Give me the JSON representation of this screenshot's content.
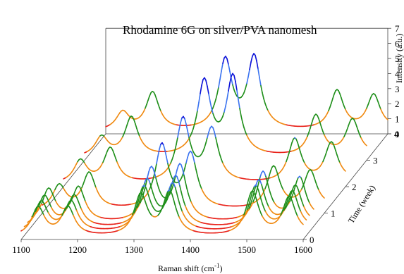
{
  "chart_data": {
    "type": "line",
    "title": "Rhodamine 6G on silver/PVA nanomesh",
    "xlabel_main": "Raman shift (cm",
    "xlabel_sup": "-1",
    "xlabel_tail": ")",
    "ylabel": "Time (week)",
    "zlabel": "Intensity (a.u.)",
    "x_ticks": [
      "1100",
      "1200",
      "1300",
      "1400",
      "1500",
      "1600"
    ],
    "y_ticks": [
      "0",
      "1",
      "2",
      "3",
      "4"
    ],
    "z_ticks": [
      "0",
      "1",
      "2",
      "3",
      "4",
      "5",
      "6",
      "7"
    ],
    "xlim": [
      1100,
      1600
    ],
    "ylim": [
      0,
      4
    ],
    "zlim": [
      0,
      7
    ],
    "colormap": [
      "#e8221a",
      "#f08a12",
      "#1f8f1a",
      "#3a73f0",
      "#0b12d8"
    ],
    "peaks_cm1": [
      1130,
      1183,
      1312,
      1363,
      1510,
      1575,
      1650
    ],
    "series": [
      {
        "week": 0,
        "peak_heights": [
          1.9,
          1.9,
          2.7,
          2.9,
          2.9,
          2.5,
          2.3
        ]
      },
      {
        "week": 0.15,
        "peak_heights": [
          2.0,
          2.0,
          2.9,
          3.1,
          3.0,
          2.6,
          2.4
        ]
      },
      {
        "week": 0.3,
        "peak_heights": [
          2.1,
          2.1,
          3.1,
          3.3,
          3.1,
          2.7,
          2.5
        ]
      },
      {
        "week": 0.5,
        "peak_heights": [
          2.2,
          2.3,
          3.5,
          3.7,
          3.3,
          2.9,
          2.6
        ]
      },
      {
        "week": 1,
        "peak_heights": [
          1.6,
          2.4,
          4.2,
          3.6,
          2.8,
          2.5,
          2.2
        ]
      },
      {
        "week": 2,
        "peak_heights": [
          1.5,
          2.3,
          4.2,
          3.5,
          2.9,
          2.6,
          2.3
        ]
      },
      {
        "week": 3,
        "peak_heights": [
          1.3,
          2.6,
          4.9,
          5.2,
          2.7,
          2.4,
          2.1
        ]
      },
      {
        "week": 4,
        "peak_heights": [
          1.2,
          2.5,
          4.6,
          4.8,
          2.6,
          2.3,
          2.0
        ]
      }
    ]
  }
}
